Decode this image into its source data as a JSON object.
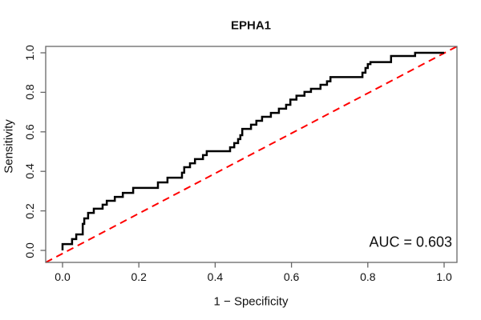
{
  "figure": {
    "title": "EPHA1",
    "auc_label": "AUC = 0.603"
  },
  "chart_data": {
    "type": "line",
    "subtype": "roc-step-curve",
    "title": "EPHA1",
    "xlabel": "1 − Specificity",
    "ylabel": "Sensitivity",
    "xlim": [
      0.0,
      1.0
    ],
    "ylim": [
      0.0,
      1.0
    ],
    "grid": false,
    "legend": "none",
    "auc": 0.603,
    "x_tick_values": [
      0.0,
      0.2,
      0.4,
      0.6,
      0.8,
      1.0
    ],
    "x_tick_labels": [
      "0.0",
      "0.2",
      "0.4",
      "0.6",
      "0.8",
      "1.0"
    ],
    "y_tick_values": [
      0.0,
      0.2,
      0.4,
      0.6,
      0.8,
      1.0
    ],
    "y_tick_labels": [
      "0.0",
      "0.2",
      "0.4",
      "0.6",
      "0.8",
      "1.0"
    ],
    "colors": {
      "roc_curve": "#000000",
      "diagonal": "#ff0000",
      "box": "#666666",
      "text": "#111111"
    },
    "series": [
      {
        "name": "ROC curve",
        "style": "solid-step",
        "color": "#000000",
        "points": [
          [
            0,
            0
          ],
          [
            0,
            0.032
          ],
          [
            0.025,
            0.032
          ],
          [
            0.025,
            0.057
          ],
          [
            0.036,
            0.057
          ],
          [
            0.036,
            0.081
          ],
          [
            0.053,
            0.081
          ],
          [
            0.053,
            0.134
          ],
          [
            0.057,
            0.134
          ],
          [
            0.057,
            0.162
          ],
          [
            0.067,
            0.162
          ],
          [
            0.067,
            0.19
          ],
          [
            0.082,
            0.19
          ],
          [
            0.082,
            0.211
          ],
          [
            0.105,
            0.211
          ],
          [
            0.105,
            0.231
          ],
          [
            0.116,
            0.231
          ],
          [
            0.116,
            0.251
          ],
          [
            0.137,
            0.251
          ],
          [
            0.137,
            0.271
          ],
          [
            0.158,
            0.271
          ],
          [
            0.158,
            0.291
          ],
          [
            0.185,
            0.291
          ],
          [
            0.185,
            0.316
          ],
          [
            0.25,
            0.316
          ],
          [
            0.25,
            0.344
          ],
          [
            0.275,
            0.344
          ],
          [
            0.275,
            0.368
          ],
          [
            0.313,
            0.368
          ],
          [
            0.313,
            0.393
          ],
          [
            0.319,
            0.393
          ],
          [
            0.319,
            0.421
          ],
          [
            0.334,
            0.421
          ],
          [
            0.334,
            0.441
          ],
          [
            0.347,
            0.441
          ],
          [
            0.347,
            0.462
          ],
          [
            0.368,
            0.462
          ],
          [
            0.368,
            0.482
          ],
          [
            0.378,
            0.482
          ],
          [
            0.378,
            0.502
          ],
          [
            0.439,
            0.502
          ],
          [
            0.439,
            0.522
          ],
          [
            0.45,
            0.522
          ],
          [
            0.45,
            0.543
          ],
          [
            0.46,
            0.543
          ],
          [
            0.46,
            0.563
          ],
          [
            0.466,
            0.563
          ],
          [
            0.466,
            0.583
          ],
          [
            0.471,
            0.583
          ],
          [
            0.471,
            0.615
          ],
          [
            0.494,
            0.615
          ],
          [
            0.494,
            0.636
          ],
          [
            0.508,
            0.636
          ],
          [
            0.508,
            0.656
          ],
          [
            0.523,
            0.656
          ],
          [
            0.523,
            0.676
          ],
          [
            0.546,
            0.676
          ],
          [
            0.546,
            0.696
          ],
          [
            0.567,
            0.696
          ],
          [
            0.567,
            0.717
          ],
          [
            0.586,
            0.717
          ],
          [
            0.586,
            0.737
          ],
          [
            0.597,
            0.737
          ],
          [
            0.597,
            0.763
          ],
          [
            0.613,
            0.763
          ],
          [
            0.613,
            0.783
          ],
          [
            0.634,
            0.783
          ],
          [
            0.634,
            0.802
          ],
          [
            0.651,
            0.802
          ],
          [
            0.651,
            0.818
          ],
          [
            0.676,
            0.818
          ],
          [
            0.676,
            0.838
          ],
          [
            0.693,
            0.838
          ],
          [
            0.693,
            0.856
          ],
          [
            0.702,
            0.856
          ],
          [
            0.702,
            0.877
          ],
          [
            0.786,
            0.877
          ],
          [
            0.786,
            0.899
          ],
          [
            0.794,
            0.899
          ],
          [
            0.794,
            0.923
          ],
          [
            0.8,
            0.923
          ],
          [
            0.8,
            0.943
          ],
          [
            0.807,
            0.943
          ],
          [
            0.807,
            0.953
          ],
          [
            0.861,
            0.953
          ],
          [
            0.861,
            0.984
          ],
          [
            0.924,
            0.984
          ],
          [
            0.924,
            1
          ],
          [
            1,
            1
          ]
        ]
      },
      {
        "name": "chance diagonal",
        "style": "dashed",
        "color": "#ff0000",
        "spans_full_box": true,
        "points": [
          [
            0,
            0
          ],
          [
            1,
            1
          ]
        ]
      }
    ]
  }
}
